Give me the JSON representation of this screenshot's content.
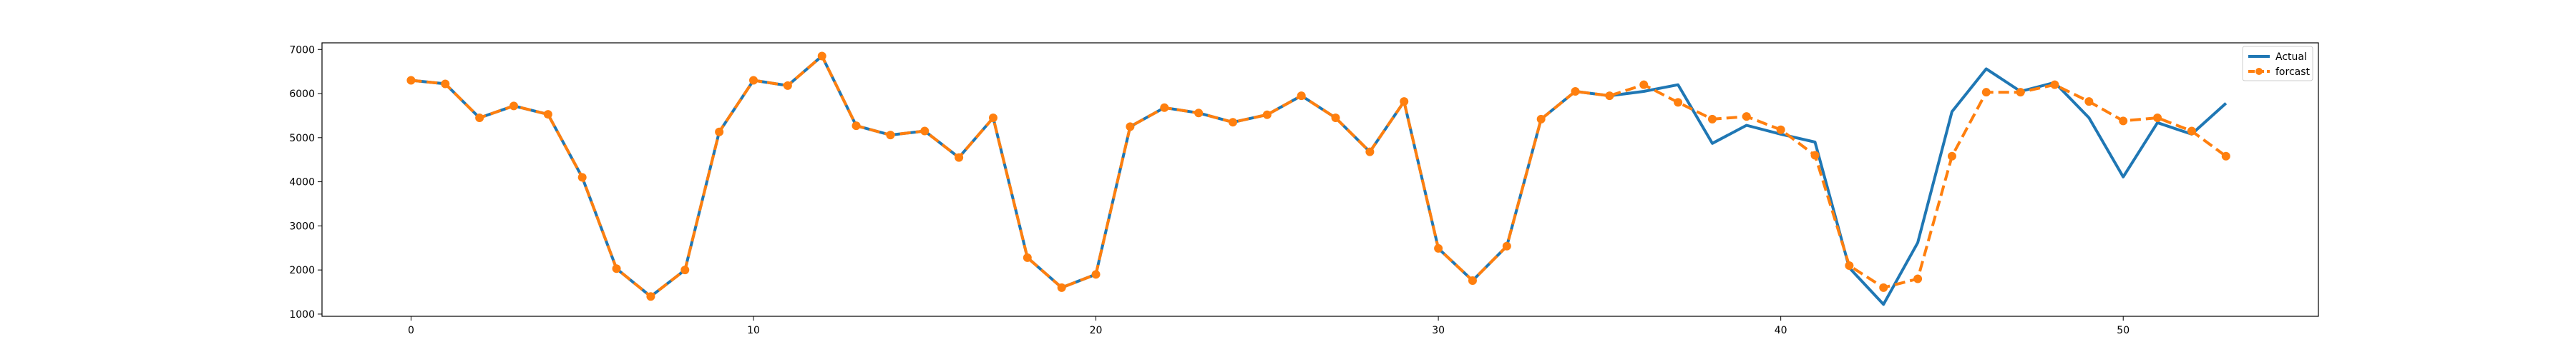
{
  "chart_data": {
    "type": "line",
    "title": "",
    "xlabel": "",
    "ylabel": "",
    "xlim": [
      -2.6,
      55.7
    ],
    "ylim": [
      950,
      7150
    ],
    "xticks": [
      0,
      10,
      20,
      30,
      40,
      50
    ],
    "yticks": [
      1000,
      2000,
      3000,
      4000,
      5000,
      6000,
      7000
    ],
    "grid": false,
    "legend_position": "top-right",
    "series": [
      {
        "name": "Actual",
        "color": "#1f77b4",
        "style": "solid",
        "markers": false,
        "x": [
          0,
          1,
          2,
          3,
          4,
          5,
          6,
          7,
          8,
          9,
          10,
          11,
          12,
          13,
          14,
          15,
          16,
          17,
          18,
          19,
          20,
          21,
          22,
          23,
          24,
          25,
          26,
          27,
          28,
          29,
          30,
          31,
          32,
          33,
          34,
          35,
          36,
          37,
          38,
          39,
          40,
          41,
          42,
          43,
          44,
          45,
          46,
          47,
          48,
          49,
          50,
          51,
          52,
          53
        ],
        "values": [
          6300,
          6220,
          5450,
          5720,
          5530,
          4100,
          2030,
          1400,
          2000,
          5130,
          6300,
          6180,
          6850,
          5270,
          5060,
          5150,
          4550,
          5450,
          2280,
          1600,
          1900,
          5250,
          5680,
          5560,
          5350,
          5520,
          5950,
          5450,
          4680,
          5820,
          2490,
          1760,
          2540,
          5420,
          6050,
          5950,
          6050,
          6200,
          4870,
          5280,
          5080,
          4900,
          2050,
          1220,
          2620,
          5590,
          6560,
          6050,
          6250,
          5450,
          4110,
          5340,
          5080,
          5780
        ]
      },
      {
        "name": "forcast",
        "color": "#ff7f0e",
        "style": "dashed",
        "markers": true,
        "x": [
          0,
          1,
          2,
          3,
          4,
          5,
          6,
          7,
          8,
          9,
          10,
          11,
          12,
          13,
          14,
          15,
          16,
          17,
          18,
          19,
          20,
          21,
          22,
          23,
          24,
          25,
          26,
          27,
          28,
          29,
          30,
          31,
          32,
          33,
          34,
          35,
          36,
          37,
          38,
          39,
          40,
          41,
          42,
          43,
          44,
          45,
          46,
          47,
          48,
          49,
          50,
          51,
          52,
          53
        ],
        "values": [
          6300,
          6220,
          5450,
          5720,
          5530,
          4100,
          2030,
          1400,
          2000,
          5130,
          6300,
          6180,
          6850,
          5270,
          5060,
          5150,
          4550,
          5450,
          2280,
          1600,
          1900,
          5250,
          5680,
          5560,
          5350,
          5520,
          5950,
          5450,
          4680,
          5820,
          2490,
          1760,
          2540,
          5420,
          6050,
          5950,
          6200,
          5800,
          5420,
          5480,
          5180,
          4600,
          2100,
          1600,
          1800,
          4580,
          6030,
          6030,
          6200,
          5820,
          5380,
          5450,
          5150,
          4580
        ]
      }
    ]
  }
}
